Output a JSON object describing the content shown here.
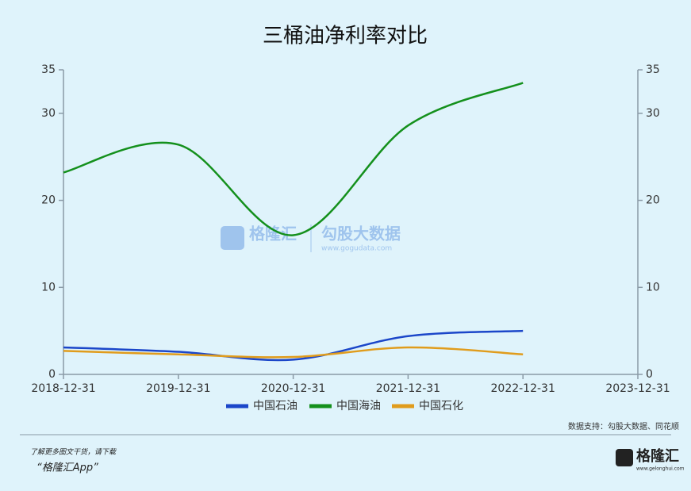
{
  "chart_data": {
    "type": "line",
    "title": "三桶油净利率对比",
    "categories": [
      "2018-12-31",
      "2019-12-31",
      "2020-12-31",
      "2021-12-31",
      "2022-12-31",
      "2023-12-31"
    ],
    "series": [
      {
        "name": "中国石油",
        "color": "#1b46c9",
        "values": [
          3.1,
          2.6,
          1.7,
          4.4,
          5.0,
          null
        ]
      },
      {
        "name": "中国海油",
        "color": "#14901c",
        "values": [
          23.2,
          26.4,
          16.0,
          28.6,
          33.5,
          null
        ]
      },
      {
        "name": "中国石化",
        "color": "#e09c1c",
        "values": [
          2.7,
          2.3,
          2.0,
          3.1,
          2.3,
          null
        ]
      }
    ],
    "ylim": [
      0,
      35
    ],
    "yticks": [
      0,
      10,
      20,
      30,
      35
    ],
    "y2lim": [
      0,
      35
    ],
    "y2ticks": [
      0,
      10,
      20,
      30,
      35
    ],
    "watermark": {
      "brand": "格隆汇",
      "product": "勾股大数据",
      "url": "www.gogudata.com"
    },
    "source": "数据支持：勾股大数据、同花顺"
  },
  "footer": {
    "note": "了解更多图文干货，请下载",
    "app": "“格隆汇App”",
    "logo": "格隆汇",
    "logo_url": "www.gelonghui.com"
  }
}
